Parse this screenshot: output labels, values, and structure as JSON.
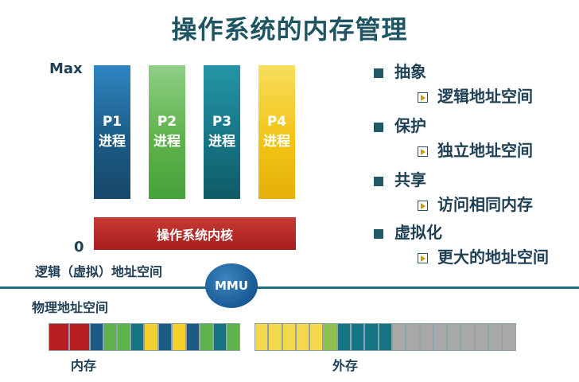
{
  "title": "操作系统的内存管理",
  "axis": {
    "max_label": "Max",
    "zero_label": "0"
  },
  "processes": [
    {
      "id": "P1",
      "label": "进程",
      "color": "#1c5b85"
    },
    {
      "id": "P2",
      "label": "进程",
      "color": "#5fb24c"
    },
    {
      "id": "P3",
      "label": "进程",
      "color": "#167585"
    },
    {
      "id": "P4",
      "label": "进程",
      "color": "#f2c417"
    }
  ],
  "kernel_label": "操作系统内核",
  "logical_space_label": "逻辑（虚拟）地址空间",
  "physical_space_label": "物理地址空间",
  "mmu_label": "MMU",
  "memory_label": "内存",
  "storage_label": "外存",
  "memory_cells": [
    "#b81f25",
    "#b81f25",
    "#1c5b85",
    "#5fb24c",
    "#5fb24c",
    "#167585",
    "#f2d22a",
    "#1c5b85",
    "#f2d22a",
    "#1c5b85",
    "#5fb24c",
    "#167585",
    "#5fb24c"
  ],
  "storage_cells": [
    "#f2d84a",
    "#f2d84a",
    "#f2d84a",
    "#f2d84a",
    "#f2d84a",
    "#8dc24e",
    "#167585",
    "#167585",
    "#167585",
    "#167585",
    "#a8a8a8",
    "#a8a8a8",
    "#a8a8a8",
    "#a8a8a8",
    "#a8a8a8",
    "#a8a8a8",
    "#a8a8a8",
    "#a8a8a8",
    "#a8a8a8"
  ],
  "features": [
    {
      "main": "抽象",
      "sub": "逻辑地址空间"
    },
    {
      "main": "保护",
      "sub": "独立地址空间"
    },
    {
      "main": "共享",
      "sub": "访问相同内存"
    },
    {
      "main": "虚拟化",
      "sub": "更大的地址空间"
    }
  ]
}
